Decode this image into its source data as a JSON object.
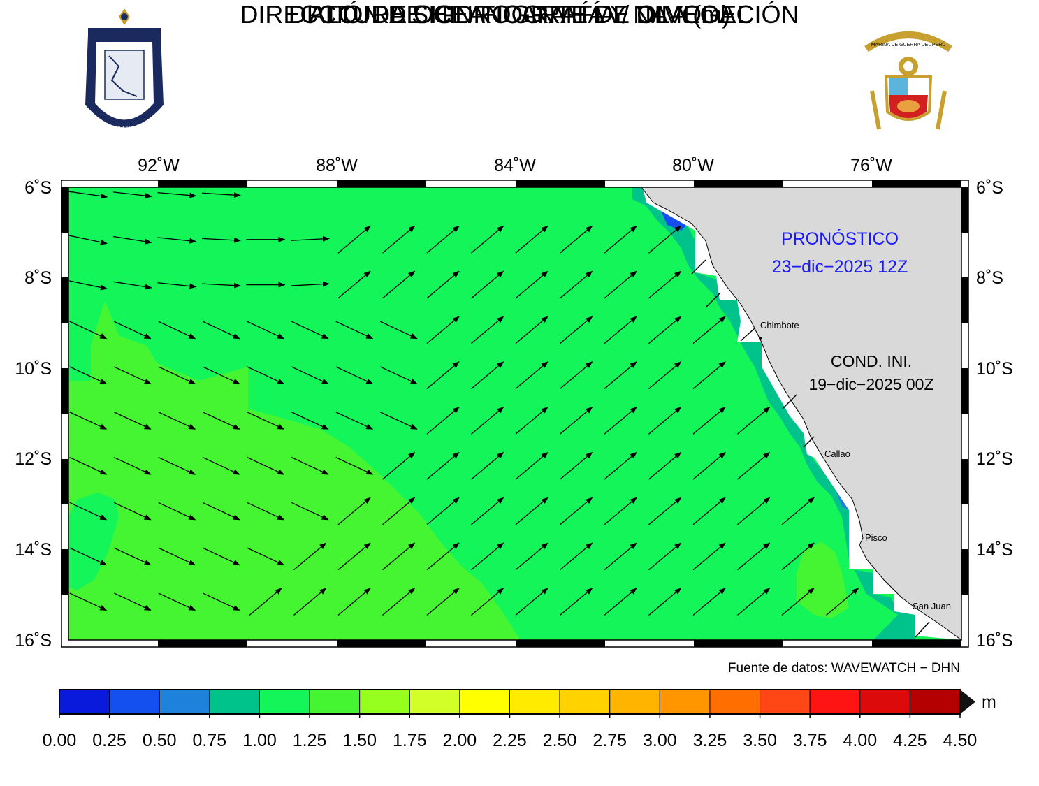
{
  "header": {
    "line1": "DIRECCIÓN DE HIDROGRAFÍA Y NAVEGACIÓN",
    "line2": "DPTO. DE OCEANOGRAFÍA / DIMODEL",
    "line3": "ALTURA SIGNIFICANTE DE OLA (m)",
    "left_logo_text": "DIRECCIÓN DE HIDROGRAFÍA Y NAVEGACIÓN",
    "right_logo_text": "MARINA DE GUERRA DEL PERÚ"
  },
  "map": {
    "lon_labels": [
      "92˚W",
      "88˚W",
      "84˚W",
      "80˚W",
      "76˚W"
    ],
    "lat_labels": [
      "6˚S",
      "8˚S",
      "10˚S",
      "12˚S",
      "14˚S",
      "16˚S"
    ],
    "forecast_label": "PRONÓSTICO",
    "forecast_date": "23−dic−2025 12Z",
    "init_label": "COND. INI.",
    "init_date": "19−dic−2025 00Z",
    "cities": [
      {
        "name": "Chimbote"
      },
      {
        "name": "Callao"
      },
      {
        "name": "Pisco"
      },
      {
        "name": "San Juan"
      }
    ],
    "source": "Fuente de datos: WAVEWATCH − DHN",
    "land_color": "#d9d9d9",
    "forecast_color": "#1a1aff"
  },
  "colorbar": {
    "unit": "m",
    "ticks": [
      "0.00",
      "0.25",
      "0.50",
      "0.75",
      "1.00",
      "1.25",
      "1.50",
      "1.75",
      "2.00",
      "2.25",
      "2.50",
      "2.75",
      "3.00",
      "3.25",
      "3.50",
      "3.75",
      "4.00",
      "4.25",
      "4.50"
    ],
    "colors": [
      "#0a1adc",
      "#1450f0",
      "#1e82dc",
      "#00c38c",
      "#14f55a",
      "#46f532",
      "#96ff1e",
      "#d2ff28",
      "#ffff00",
      "#ffeb00",
      "#ffd200",
      "#ffb400",
      "#ff9600",
      "#ff6e00",
      "#ff4614",
      "#ff1414",
      "#dc0a0a",
      "#b40000"
    ]
  }
}
